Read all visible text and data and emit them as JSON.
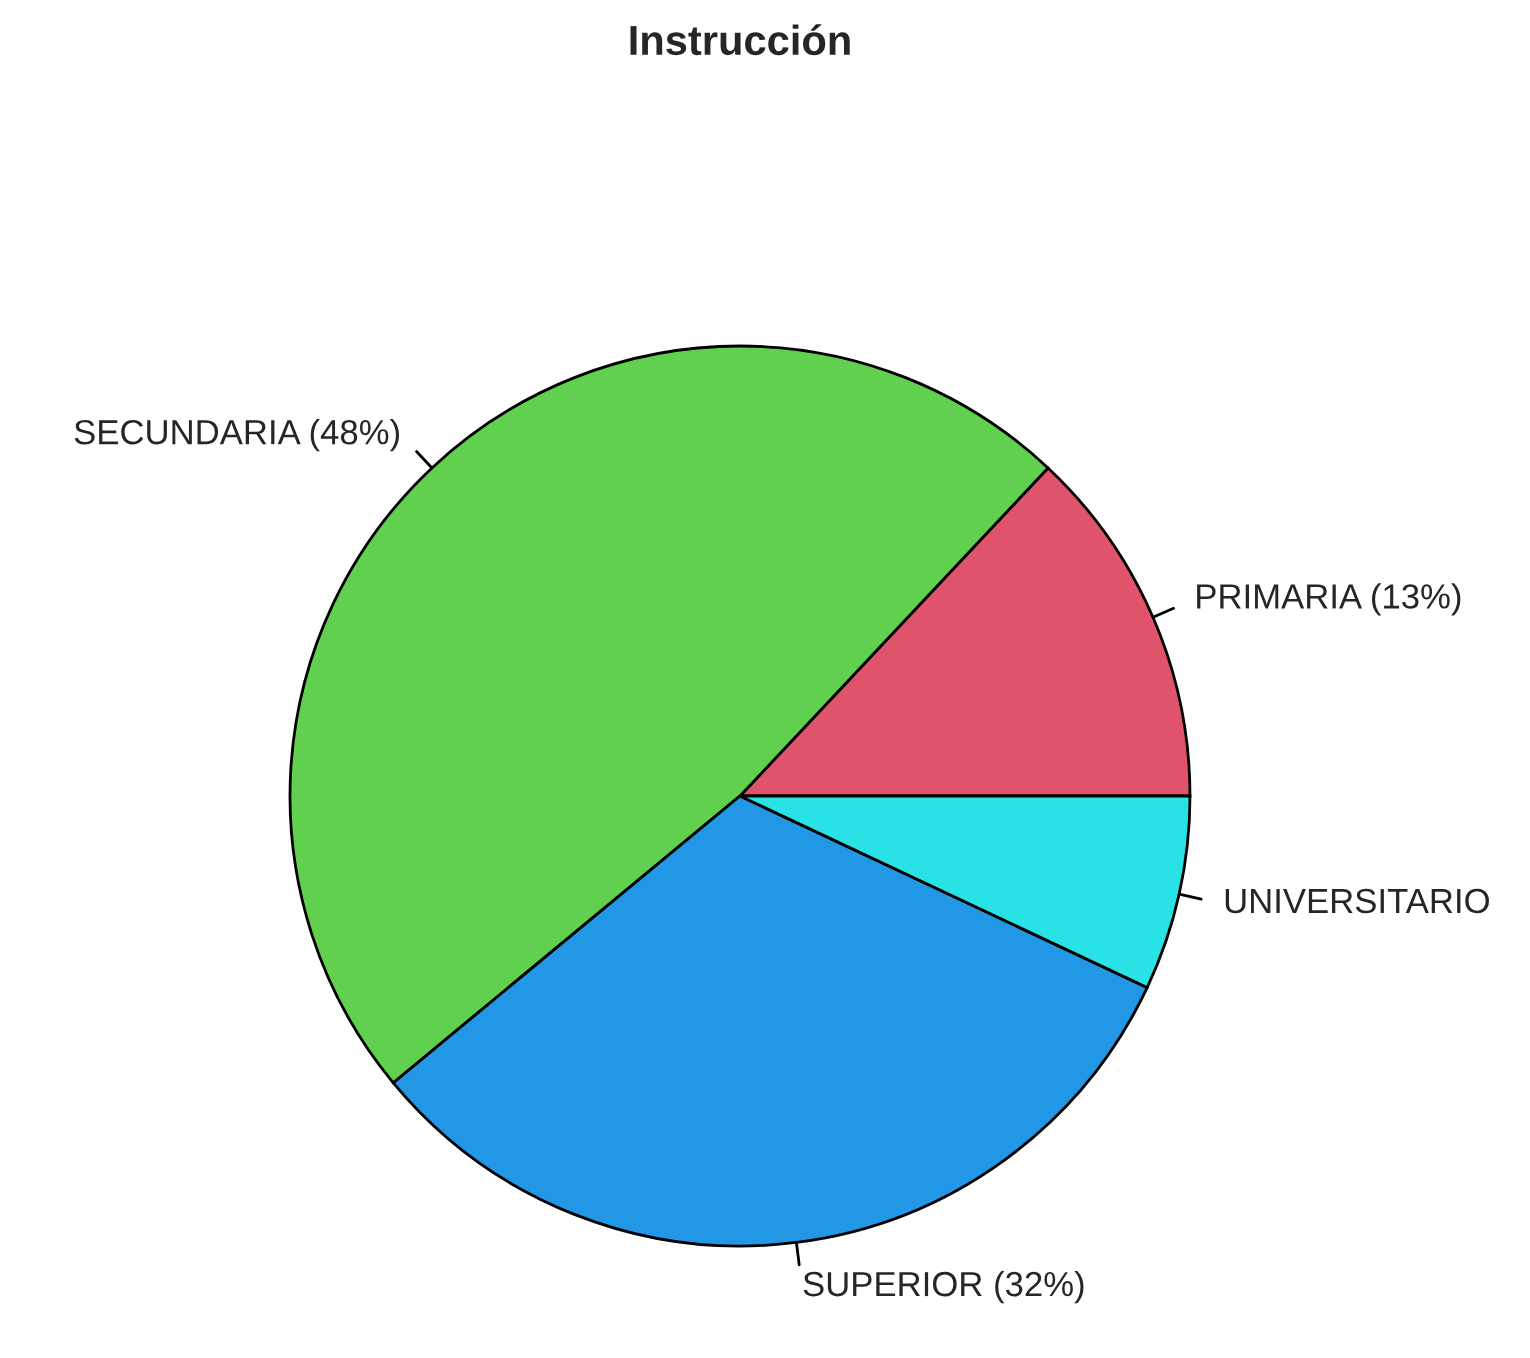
{
  "chart_data": {
    "type": "pie",
    "title": "Instrucción",
    "categories": [
      "PRIMARIA (13%)",
      "SECUNDARIA (48%)",
      "SUPERIOR (32%)",
      "UNIVERSITARIO"
    ],
    "values": [
      13,
      48,
      32,
      7
    ],
    "colors": [
      "#df536b",
      "#61d04f",
      "#2297e6",
      "#28e2e5"
    ]
  }
}
